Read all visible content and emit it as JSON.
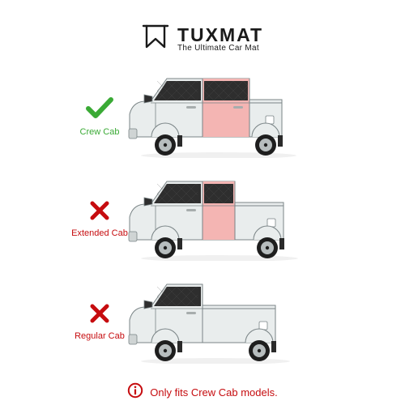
{
  "brand": {
    "name": "TUXMAT",
    "tagline": "The Ultimate Car Mat",
    "logo_color": "#1a1a1a"
  },
  "colors": {
    "ok": "#3aaa35",
    "bad": "#c60c0f",
    "truck_body": "#e9eded",
    "truck_outline": "#7a8486",
    "window": "#2e2e2e",
    "highlight": "#f4b5b3",
    "wheel": "#1e1e1e",
    "hub": "#b7bdbe",
    "mudflap": "#2a2a2a",
    "handle": "#a7adad"
  },
  "options": [
    {
      "id": "crew",
      "label": "Crew Cab",
      "ok": true,
      "rear_door": true,
      "rear_full": true,
      "highlight_rear": true,
      "bed_len": 40
    },
    {
      "id": "extended",
      "label": "Extended Cab",
      "ok": false,
      "rear_door": true,
      "rear_full": false,
      "highlight_rear": true,
      "bed_len": 60
    },
    {
      "id": "regular",
      "label": "Regular Cab",
      "ok": false,
      "rear_door": false,
      "rear_full": false,
      "highlight_rear": false,
      "bed_len": 90
    }
  ],
  "note": "Only fits Crew Cab models."
}
